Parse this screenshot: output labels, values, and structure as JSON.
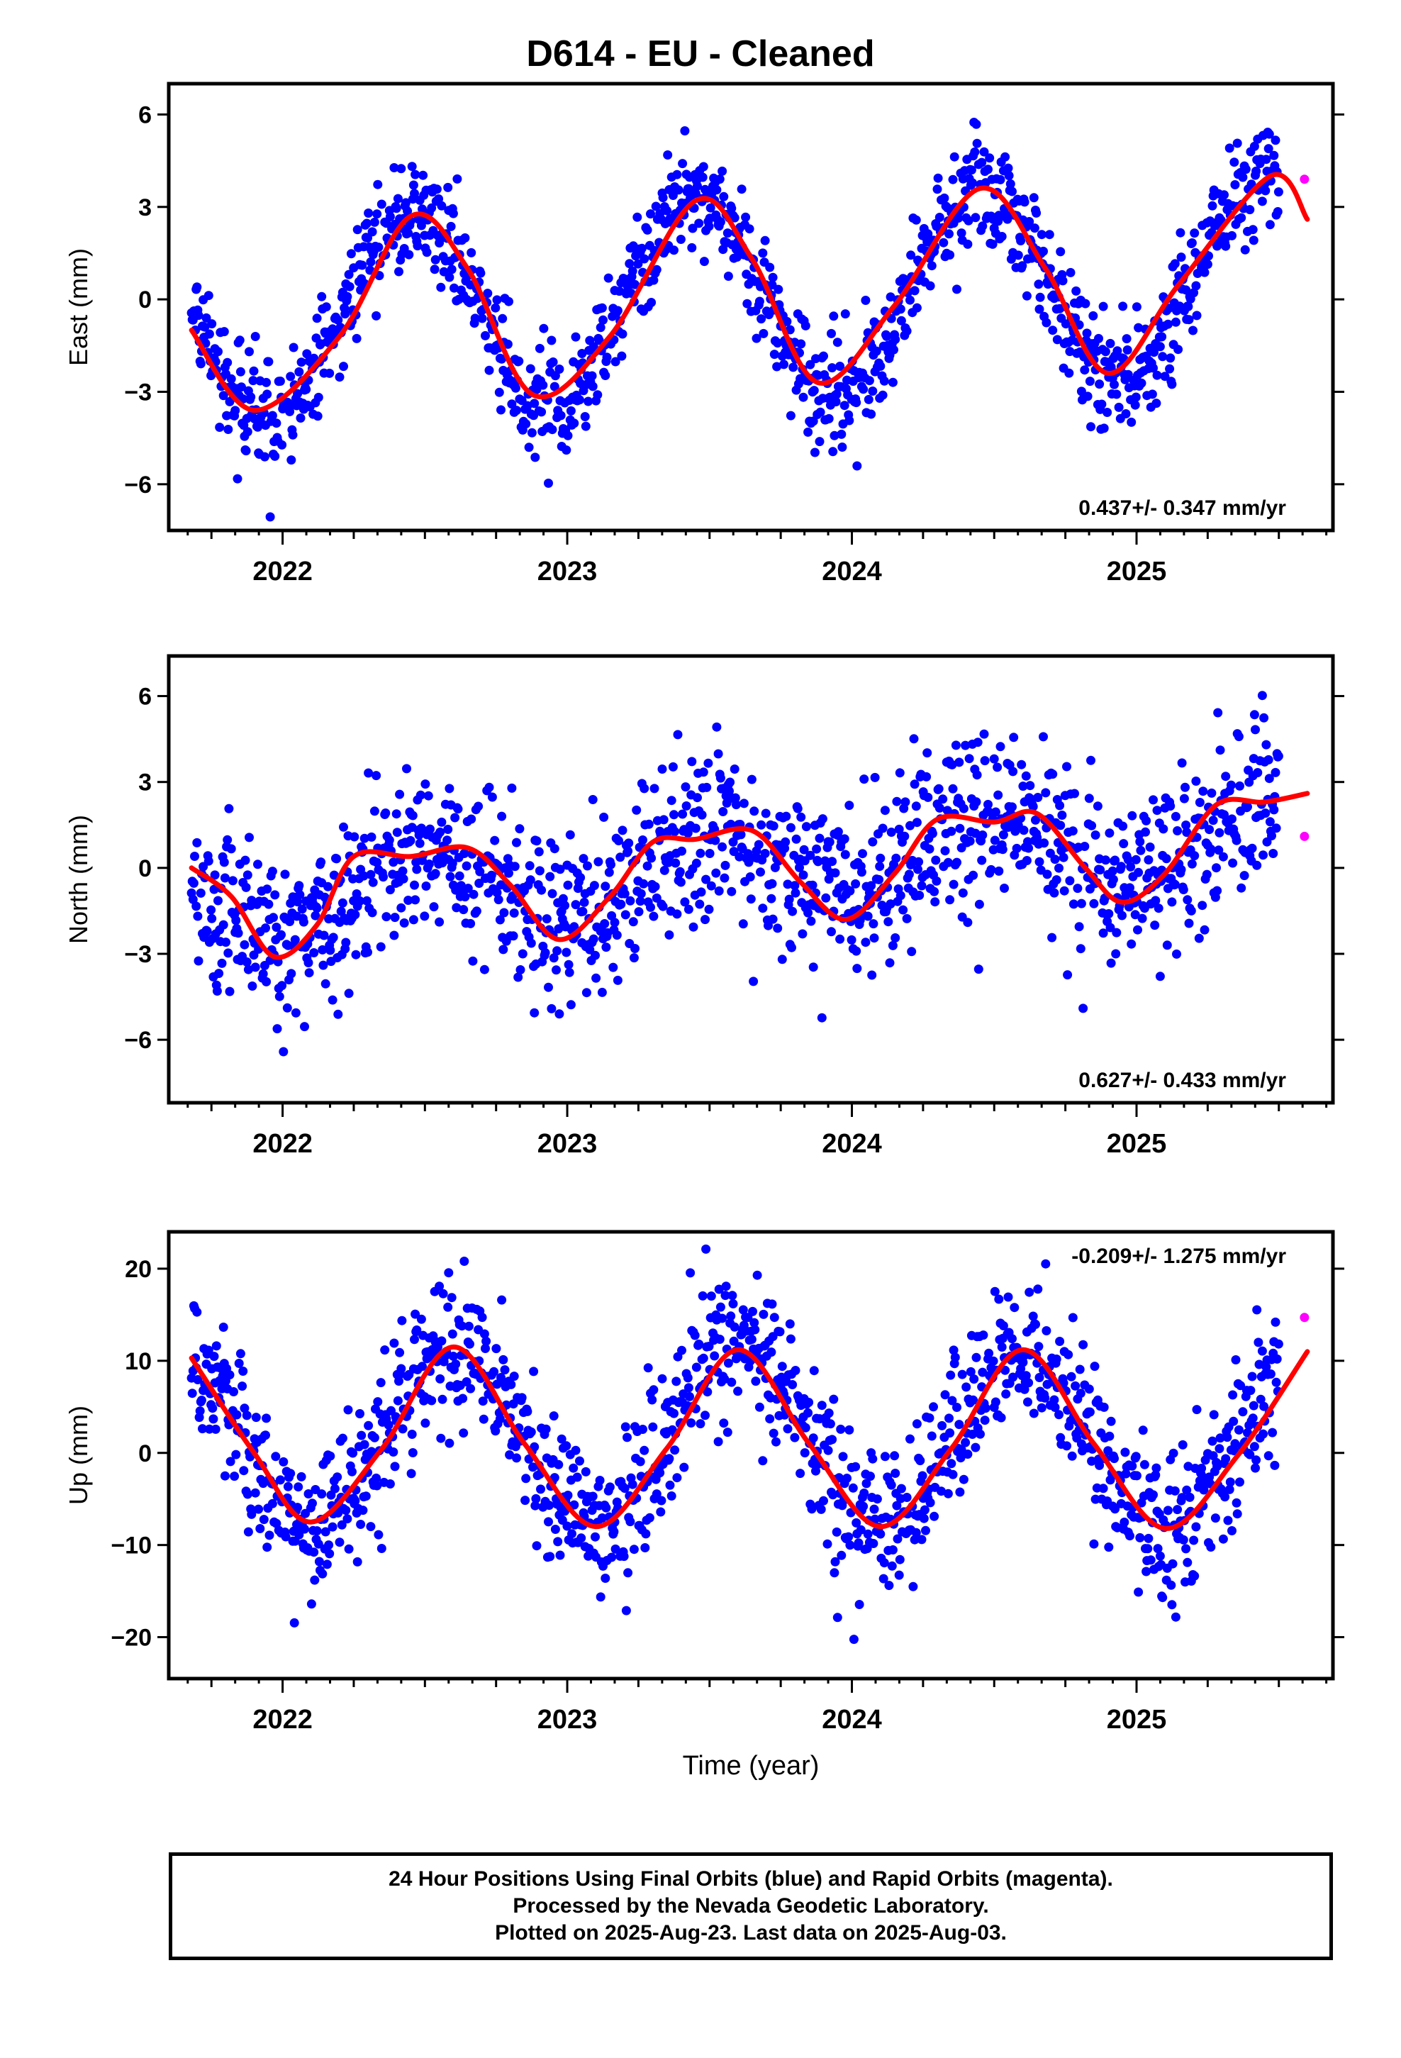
{
  "title": "D614  - EU - Cleaned",
  "colors": {
    "final_orbits": "#0000ff",
    "rapid_orbits": "#ff00ff",
    "fit": "#ff0000",
    "frame": "#000000"
  },
  "chart_data": [
    {
      "type": "scatter",
      "ylabel": "East (mm)",
      "xlabel": "",
      "xlim": [
        2021.6,
        2025.69
      ],
      "ylim": [
        -7.5,
        7
      ],
      "yticks": [
        -6,
        -3,
        0,
        3,
        6
      ],
      "xticks": [
        2022,
        2023,
        2024,
        2025
      ],
      "rate_label": "0.437+/- 0.347 mm/yr",
      "rate_position": "bottom-right",
      "trend": 0.437,
      "seasonal": {
        "mean": 0.0,
        "annual_amplitude": 3.2,
        "peak_phase_year": 0.45
      },
      "scatter_std": 0.9,
      "data_range": [
        2021.68,
        2025.5
      ],
      "series": [
        {
          "name": "Final Orbits (blue)",
          "role": "final"
        },
        {
          "name": "Rapid Orbits (magenta)",
          "role": "rapid",
          "points": [
            [
              2025.59,
              3.9
            ]
          ]
        },
        {
          "role": "fit",
          "points": [
            [
              2021.68,
              -1.0
            ],
            [
              2021.9,
              -3.6
            ],
            [
              2022.2,
              -1.2
            ],
            [
              2022.45,
              2.7
            ],
            [
              2022.65,
              1.0
            ],
            [
              2022.88,
              -3.1
            ],
            [
              2023.15,
              -1.2
            ],
            [
              2023.45,
              3.2
            ],
            [
              2023.65,
              1.3
            ],
            [
              2023.88,
              -2.7
            ],
            [
              2024.15,
              -0.2
            ],
            [
              2024.45,
              3.6
            ],
            [
              2024.68,
              1.0
            ],
            [
              2024.9,
              -2.4
            ],
            [
              2025.15,
              0.5
            ],
            [
              2025.47,
              4.0
            ],
            [
              2025.6,
              2.6
            ]
          ]
        }
      ]
    },
    {
      "type": "scatter",
      "ylabel": "North (mm)",
      "xlabel": "",
      "xlim": [
        2021.6,
        2025.69
      ],
      "ylim": [
        -8.2,
        7.4
      ],
      "yticks": [
        -6,
        -3,
        0,
        3,
        6
      ],
      "xticks": [
        2022,
        2023,
        2024,
        2025
      ],
      "rate_label": "0.627+/- 0.433 mm/yr",
      "rate_position": "bottom-right",
      "trend": 0.627,
      "seasonal": {
        "mean": 0.0,
        "annual_amplitude": 1.3,
        "peak_phase_year": 0.5
      },
      "scatter_std": 1.5,
      "data_range": [
        2021.68,
        2025.5
      ],
      "series": [
        {
          "name": "Final Orbits (blue)",
          "role": "final"
        },
        {
          "name": "Rapid Orbits (magenta)",
          "role": "rapid",
          "points": [
            [
              2025.59,
              1.1
            ]
          ]
        },
        {
          "role": "fit",
          "points": [
            [
              2021.68,
              0.0
            ],
            [
              2021.82,
              -1.0
            ],
            [
              2021.97,
              -3.1
            ],
            [
              2022.12,
              -2.0
            ],
            [
              2022.25,
              0.4
            ],
            [
              2022.45,
              0.4
            ],
            [
              2022.65,
              0.7
            ],
            [
              2022.8,
              -0.6
            ],
            [
              2022.97,
              -2.5
            ],
            [
              2023.15,
              -1.0
            ],
            [
              2023.3,
              0.9
            ],
            [
              2023.45,
              1.0
            ],
            [
              2023.65,
              1.3
            ],
            [
              2023.82,
              -0.5
            ],
            [
              2023.98,
              -1.8
            ],
            [
              2024.15,
              -0.2
            ],
            [
              2024.3,
              1.7
            ],
            [
              2024.5,
              1.6
            ],
            [
              2024.65,
              1.9
            ],
            [
              2024.82,
              0.0
            ],
            [
              2024.95,
              -1.2
            ],
            [
              2025.1,
              -0.2
            ],
            [
              2025.28,
              2.2
            ],
            [
              2025.45,
              2.3
            ],
            [
              2025.6,
              2.6
            ]
          ]
        }
      ]
    },
    {
      "type": "scatter",
      "ylabel": "Up (mm)",
      "xlabel": "Time (year)",
      "xlim": [
        2021.6,
        2025.69
      ],
      "ylim": [
        -24.5,
        24
      ],
      "yticks": [
        -20,
        -10,
        0,
        10,
        20
      ],
      "xticks": [
        2022,
        2023,
        2024,
        2025
      ],
      "rate_label": "-0.209+/- 1.275 mm/yr",
      "rate_position": "top-right",
      "trend": -0.209,
      "seasonal": {
        "mean": 1.7,
        "annual_amplitude": 9.7,
        "peak_phase_year": 0.6
      },
      "scatter_std": 4.0,
      "data_range": [
        2021.68,
        2025.5
      ],
      "series": [
        {
          "name": "Final Orbits (blue)",
          "role": "final"
        },
        {
          "name": "Rapid Orbits (magenta)",
          "role": "rapid",
          "points": [
            [
              2025.59,
              14.7
            ]
          ]
        },
        {
          "role": "fit",
          "points": [
            [
              2021.68,
              10.3
            ],
            [
              2021.9,
              0.0
            ],
            [
              2022.1,
              -7.5
            ],
            [
              2022.35,
              0.5
            ],
            [
              2022.6,
              11.5
            ],
            [
              2022.85,
              1.0
            ],
            [
              2023.1,
              -8.0
            ],
            [
              2023.35,
              0.5
            ],
            [
              2023.6,
              11.2
            ],
            [
              2023.85,
              1.0
            ],
            [
              2024.1,
              -8.0
            ],
            [
              2024.35,
              0.5
            ],
            [
              2024.6,
              11.2
            ],
            [
              2024.85,
              1.0
            ],
            [
              2025.1,
              -8.2
            ],
            [
              2025.35,
              -0.5
            ],
            [
              2025.6,
              11.0
            ]
          ]
        }
      ]
    }
  ],
  "footer": {
    "line1": "24 Hour Positions Using Final Orbits (blue) and Rapid Orbits (magenta).",
    "line2": "Processed by the Nevada Geodetic Laboratory.",
    "line3": "Plotted on 2025-Aug-23. Last data on 2025-Aug-03."
  }
}
